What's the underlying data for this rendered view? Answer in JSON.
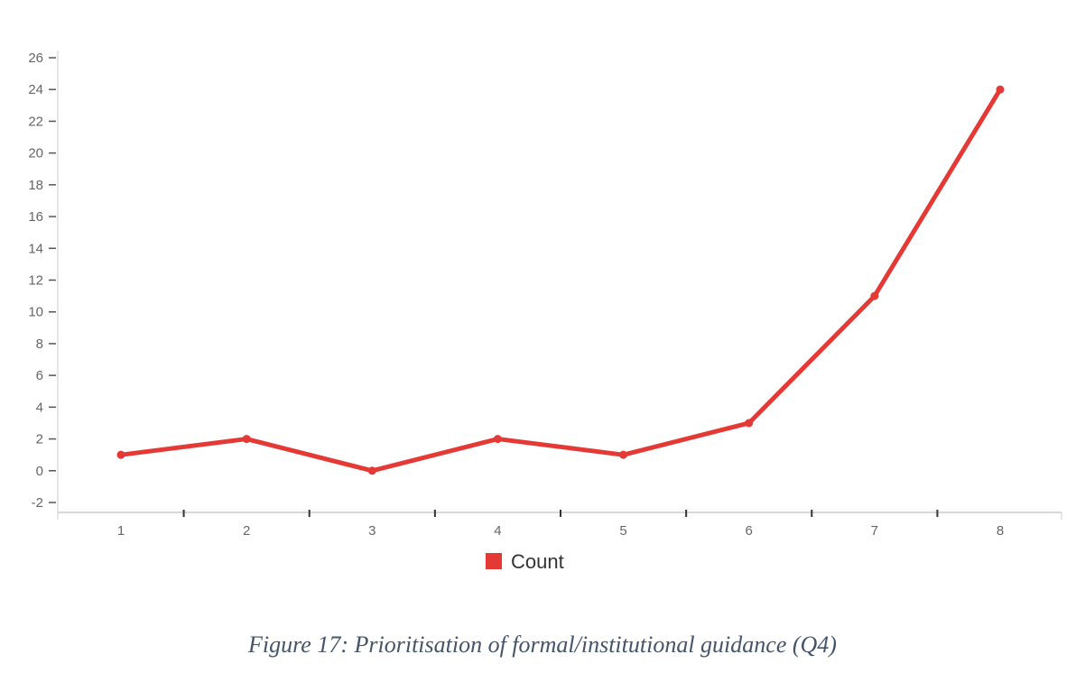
{
  "chart_data": {
    "type": "line",
    "x": [
      1,
      2,
      3,
      4,
      5,
      6,
      7,
      8
    ],
    "series": [
      {
        "name": "Count",
        "values": [
          1,
          2,
          0,
          2,
          1,
          3,
          11,
          24
        ]
      }
    ],
    "ylim": [
      -2,
      26
    ],
    "y_ticks": [
      -2,
      0,
      2,
      4,
      6,
      8,
      10,
      12,
      14,
      16,
      18,
      20,
      22,
      24,
      26
    ],
    "x_ticks": [
      1,
      2,
      3,
      4,
      5,
      6,
      7,
      8
    ],
    "grid": false,
    "legend": "bottom-center",
    "colors": {
      "series": "#e53935"
    }
  },
  "caption": "Figure 17: Prioritisation of formal/institutional guidance (Q4)"
}
